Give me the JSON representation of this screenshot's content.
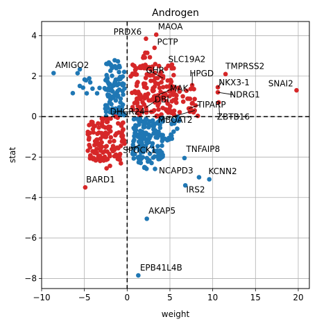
{
  "chart_data": {
    "type": "scatter",
    "title": "Androgen",
    "xlabel": "weight",
    "ylabel": "stat",
    "xlim": [
      -10,
      21.3
    ],
    "ylim": [
      -8.5,
      4.7
    ],
    "xticks": [
      -10,
      -5,
      0,
      5,
      10,
      15,
      20
    ],
    "yticks": [
      -8,
      -6,
      -4,
      -2,
      0,
      2,
      4
    ],
    "grid": true,
    "reference_lines": {
      "x": 0,
      "y": 0,
      "style": "dashed"
    },
    "colors": {
      "red": "#d62728",
      "blue": "#1f77b4",
      "grid": "#b0b0b0"
    },
    "labeled_points": [
      {
        "label": "MAOA",
        "x": 3.4,
        "y": 4.05,
        "color": "red",
        "tx": 3.6,
        "ty": 4.3,
        "line": false
      },
      {
        "label": "PRDX6",
        "x": 2.2,
        "y": 3.85,
        "color": "red",
        "tx": -1.6,
        "ty": 4.05,
        "line": false
      },
      {
        "label": "PCTP",
        "x": 3.2,
        "y": 3.4,
        "color": "red",
        "tx": 3.5,
        "ty": 3.55,
        "line": false
      },
      {
        "label": "AMIGO2",
        "x": -8.6,
        "y": 2.15,
        "color": "blue",
        "tx": -8.4,
        "ty": 2.4,
        "line": false
      },
      {
        "label": "SLC19A2",
        "x": 5.2,
        "y": 2.45,
        "color": "red",
        "tx": 4.8,
        "ty": 2.7,
        "line": false
      },
      {
        "label": "TMPRSS2",
        "x": 11.5,
        "y": 2.1,
        "color": "red",
        "tx": 11.5,
        "ty": 2.35,
        "line": false
      },
      {
        "label": "SNAI2",
        "x": 19.8,
        "y": 1.3,
        "color": "red",
        "tx": 16.5,
        "ty": 1.5,
        "line": false
      },
      {
        "label": "GHR",
        "x": 4.2,
        "y": 1.9,
        "color": "red",
        "tx": 2.2,
        "ty": 2.15,
        "line": true
      },
      {
        "label": "HPGD",
        "x": 7.6,
        "y": 1.55,
        "color": "red",
        "tx": 7.3,
        "ty": 2.0,
        "line": true
      },
      {
        "label": "NKX3-1",
        "x": 10.6,
        "y": 1.45,
        "color": "red",
        "tx": 10.7,
        "ty": 1.55,
        "line": true
      },
      {
        "label": "NDRG1",
        "x": 10.6,
        "y": 1.2,
        "color": "red",
        "tx": 12.0,
        "ty": 0.95,
        "line": true
      },
      {
        "label": "MAK",
        "x": 3.6,
        "y": 1.05,
        "color": "red",
        "tx": 5.0,
        "ty": 1.25,
        "line": true
      },
      {
        "label": "DBI",
        "x": 2.2,
        "y": 0.45,
        "color": "red",
        "tx": 3.2,
        "ty": 0.7,
        "line": true
      },
      {
        "label": "TIPARP",
        "x": 7.2,
        "y": 0.4,
        "color": "red",
        "tx": 8.2,
        "ty": 0.45,
        "line": true
      },
      {
        "label": "DHCR24",
        "x": 3.0,
        "y": 0.25,
        "color": "red",
        "tx": -2.0,
        "ty": 0.1,
        "line": true
      },
      {
        "label": "MBOAT2",
        "x": 7.9,
        "y": 0.3,
        "color": "red",
        "tx": 3.6,
        "ty": -0.3,
        "line": true
      },
      {
        "label": "ZBTB16",
        "x": 10.7,
        "y": 0.7,
        "color": "red",
        "tx": 10.5,
        "ty": -0.15,
        "line": true
      },
      {
        "label": "SPOCK1",
        "x": 1.5,
        "y": -1.4,
        "color": "blue",
        "tx": -0.5,
        "ty": -1.8,
        "line": true
      },
      {
        "label": "TNFAIP8",
        "x": 6.7,
        "y": -2.05,
        "color": "blue",
        "tx": 6.9,
        "ty": -1.75,
        "line": false
      },
      {
        "label": "NCAPD3",
        "x": 8.4,
        "y": -3.0,
        "color": "blue",
        "tx": 3.7,
        "ty": -2.8,
        "line": false
      },
      {
        "label": "KCNN2",
        "x": 9.6,
        "y": -3.1,
        "color": "blue",
        "tx": 9.5,
        "ty": -2.85,
        "line": false
      },
      {
        "label": "IRS2",
        "x": 6.8,
        "y": -3.4,
        "color": "blue",
        "tx": 6.9,
        "ty": -3.75,
        "line": false
      },
      {
        "label": "BARD1",
        "x": -4.9,
        "y": -3.5,
        "color": "red",
        "tx": -4.8,
        "ty": -3.25,
        "line": false
      },
      {
        "label": "AKAP5",
        "x": 2.3,
        "y": -5.05,
        "color": "blue",
        "tx": 2.5,
        "ty": -4.8,
        "line": false
      },
      {
        "label": "EPB41L4B",
        "x": 1.3,
        "y": -7.85,
        "color": "blue",
        "tx": 1.5,
        "ty": -7.6,
        "line": false
      }
    ],
    "clusters": [
      {
        "color": "blue",
        "n": 95,
        "xmin": -2.6,
        "xmax": -0.3,
        "ymin": 0.0,
        "ymax": 2.6,
        "seed": 11
      },
      {
        "color": "blue",
        "n": 14,
        "xmin": -6.5,
        "xmax": -2.5,
        "ymin": 1.0,
        "ymax": 2.4,
        "seed": 12
      },
      {
        "color": "blue",
        "n": 6,
        "xmin": -2.5,
        "xmax": -1.0,
        "ymin": 2.4,
        "ymax": 3.0,
        "seed": 13
      },
      {
        "color": "red",
        "n": 120,
        "xmin": -4.6,
        "xmax": -0.3,
        "ymin": -2.2,
        "ymax": 0.0,
        "seed": 21
      },
      {
        "color": "red",
        "n": 8,
        "xmin": -2.5,
        "xmax": -0.5,
        "ymin": -2.6,
        "ymax": -2.0,
        "seed": 22
      },
      {
        "color": "red",
        "n": 150,
        "xmin": 0.4,
        "xmax": 5.5,
        "ymin": 0.0,
        "ymax": 2.6,
        "seed": 31
      },
      {
        "color": "red",
        "n": 30,
        "xmin": 4.5,
        "xmax": 8.5,
        "ymin": 0.0,
        "ymax": 1.6,
        "seed": 32
      },
      {
        "color": "red",
        "n": 6,
        "xmin": 1.5,
        "xmax": 3.0,
        "ymin": 2.8,
        "ymax": 3.2,
        "seed": 33
      },
      {
        "color": "blue",
        "n": 140,
        "xmin": 0.6,
        "xmax": 4.2,
        "ymin": -2.3,
        "ymax": -0.1,
        "seed": 41
      },
      {
        "color": "blue",
        "n": 20,
        "xmin": 3.8,
        "xmax": 6.2,
        "ymin": -1.2,
        "ymax": 0.0,
        "seed": 42
      },
      {
        "color": "blue",
        "n": 6,
        "xmin": 1.5,
        "xmax": 3.5,
        "ymin": -2.6,
        "ymax": -2.2,
        "seed": 43
      }
    ]
  }
}
